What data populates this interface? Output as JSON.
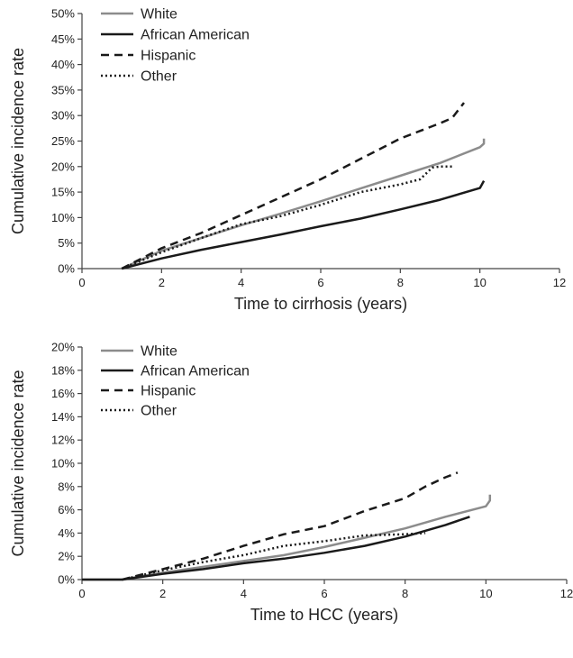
{
  "chart_data": [
    {
      "type": "line",
      "xlabel": "Time to cirrhosis (years)",
      "ylabel": "Cumulative incidence rate",
      "xlim": [
        0,
        12
      ],
      "ylim": [
        0,
        50
      ],
      "x_ticks": [
        "0",
        "2",
        "4",
        "6",
        "8",
        "10",
        "12"
      ],
      "y_ticks": [
        "0%",
        "5%",
        "10%",
        "15%",
        "20%",
        "25%",
        "30%",
        "35%",
        "40%",
        "45%",
        "50%"
      ],
      "grid": false,
      "legend_position": "top-left",
      "series": [
        {
          "name": "White",
          "style": "solid",
          "color": "#8c8c8c",
          "x": [
            1,
            2,
            3,
            4,
            5,
            6,
            7,
            8,
            9,
            10,
            10.1,
            10.1
          ],
          "y": [
            0,
            3.5,
            6,
            8.5,
            10.8,
            13.2,
            15.7,
            18.2,
            20.7,
            23.8,
            24.5,
            25.5
          ]
        },
        {
          "name": "African American",
          "style": "solid",
          "color": "#1a1a1a",
          "x": [
            1,
            2,
            3,
            4,
            5,
            6,
            7,
            8,
            9,
            10,
            10.1
          ],
          "y": [
            0,
            2,
            3.7,
            5.2,
            6.7,
            8.3,
            9.8,
            11.6,
            13.5,
            15.8,
            17.2
          ]
        },
        {
          "name": "Hispanic",
          "style": "dashed",
          "color": "#1a1a1a",
          "x": [
            1,
            2,
            3,
            4,
            5,
            6,
            7,
            7.5,
            8,
            8.5,
            9,
            9.3,
            9.6
          ],
          "y": [
            0,
            4,
            7,
            10.5,
            14,
            17.5,
            21.5,
            23.5,
            25.5,
            27,
            28.5,
            29.5,
            32.5
          ]
        },
        {
          "name": "Other",
          "style": "dotted",
          "color": "#1a1a1a",
          "x": [
            1,
            2,
            3,
            4,
            5,
            6,
            7,
            8,
            8.5,
            8.8,
            9,
            9.3
          ],
          "y": [
            0,
            3.2,
            6,
            8.7,
            10.3,
            12.5,
            15,
            16.5,
            17.5,
            19.8,
            20,
            20
          ]
        }
      ]
    },
    {
      "type": "line",
      "xlabel": "Time to HCC (years)",
      "ylabel": "Cumulative incidence rate",
      "xlim": [
        0,
        12
      ],
      "ylim": [
        0,
        20
      ],
      "x_ticks": [
        "0",
        "2",
        "4",
        "6",
        "8",
        "10",
        "12"
      ],
      "y_ticks": [
        "0%",
        "2%",
        "4%",
        "6%",
        "8%",
        "10%",
        "12%",
        "14%",
        "16%",
        "18%",
        "20%"
      ],
      "grid": false,
      "legend_position": "top-left",
      "series": [
        {
          "name": "White",
          "style": "solid",
          "color": "#8c8c8c",
          "x": [
            0,
            1,
            2,
            3,
            4,
            5,
            6,
            7,
            8,
            9,
            10,
            10.1,
            10.1
          ],
          "y": [
            0,
            0,
            0.6,
            1.1,
            1.6,
            2.1,
            2.8,
            3.6,
            4.4,
            5.4,
            6.3,
            6.8,
            7.3
          ]
        },
        {
          "name": "African American",
          "style": "solid",
          "color": "#1a1a1a",
          "x": [
            0,
            1,
            2,
            3,
            4,
            5,
            6,
            7,
            8,
            9,
            9.6
          ],
          "y": [
            0,
            0,
            0.5,
            0.9,
            1.4,
            1.8,
            2.3,
            2.9,
            3.7,
            4.7,
            5.4
          ]
        },
        {
          "name": "Hispanic",
          "style": "dashed",
          "color": "#1a1a1a",
          "x": [
            1,
            2,
            3,
            4,
            5,
            6,
            7,
            8,
            8.5,
            9,
            9.3
          ],
          "y": [
            0,
            0.9,
            1.8,
            2.9,
            3.9,
            4.6,
            5.9,
            7,
            8,
            8.8,
            9.2
          ]
        },
        {
          "name": "Other",
          "style": "dotted",
          "color": "#1a1a1a",
          "x": [
            1,
            2,
            3,
            4,
            5,
            6,
            7,
            8,
            8.5
          ],
          "y": [
            0,
            0.8,
            1.5,
            2.1,
            2.9,
            3.3,
            3.8,
            3.9,
            4
          ]
        }
      ]
    }
  ]
}
